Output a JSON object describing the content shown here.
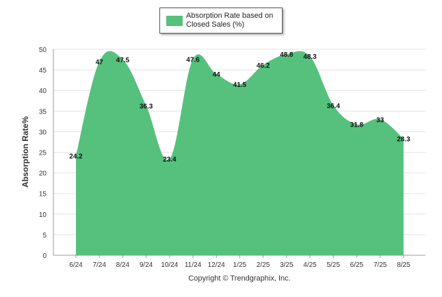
{
  "legend": {
    "label": "Absorption Rate based on Closed Sales (%)"
  },
  "copyright": "Copyright © Trendgraphix, Inc.",
  "colors": {
    "area": "#55c17d",
    "grid": "#e3e3e3",
    "axis": "#999999",
    "text": "#333333"
  },
  "chart_data": {
    "type": "area",
    "categories": [
      "6/24",
      "7/24",
      "8/24",
      "9/24",
      "10/24",
      "11/24",
      "12/24",
      "1/25",
      "2/25",
      "3/25",
      "4/25",
      "5/25",
      "6/25",
      "7/25",
      "8/25"
    ],
    "series": [
      {
        "name": "Absorption Rate based on Closed Sales (%)",
        "values": [
          24.2,
          47,
          47.5,
          36.3,
          23.4,
          47.6,
          44,
          41.5,
          46.2,
          48.8,
          48.3,
          36.4,
          31.8,
          33,
          28.3
        ]
      }
    ],
    "data_labels": [
      "24.2",
      "47",
      "47.5",
      "36.3",
      "23.4",
      "47.6",
      "44",
      "41.5",
      "46.2",
      "48.8",
      "48.3",
      "36.4",
      "31.8",
      "33",
      "28.3"
    ],
    "ylabel": "Absorption Rate%",
    "xlabel": "",
    "ylim": [
      0,
      50
    ],
    "yticks": [
      0,
      5,
      10,
      15,
      20,
      25,
      30,
      35,
      40,
      45,
      50
    ],
    "grid": true,
    "legend_position": "top-center"
  }
}
